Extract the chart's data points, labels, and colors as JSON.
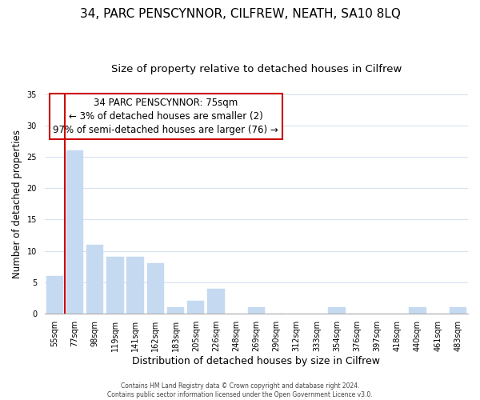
{
  "title": "34, PARC PENSCYNNOR, CILFREW, NEATH, SA10 8LQ",
  "subtitle": "Size of property relative to detached houses in Cilfrew",
  "xlabel": "Distribution of detached houses by size in Cilfrew",
  "ylabel": "Number of detached properties",
  "bar_labels": [
    "55sqm",
    "77sqm",
    "98sqm",
    "119sqm",
    "141sqm",
    "162sqm",
    "183sqm",
    "205sqm",
    "226sqm",
    "248sqm",
    "269sqm",
    "290sqm",
    "312sqm",
    "333sqm",
    "354sqm",
    "376sqm",
    "397sqm",
    "418sqm",
    "440sqm",
    "461sqm",
    "483sqm"
  ],
  "bar_values": [
    6,
    26,
    11,
    9,
    9,
    8,
    1,
    2,
    4,
    0,
    1,
    0,
    0,
    0,
    1,
    0,
    0,
    0,
    1,
    0,
    1
  ],
  "bar_color": "#c5d9f1",
  "subject_label": "34 PARC PENSCYNNOR: 75sqm",
  "annotation_line1": "← 3% of detached houses are smaller (2)",
  "annotation_line2": "97% of semi-detached houses are larger (76) →",
  "annotation_box_color": "#ffffff",
  "annotation_box_edge": "#cc0000",
  "red_line_color": "#cc0000",
  "ylim": [
    0,
    35
  ],
  "footer1": "Contains HM Land Registry data © Crown copyright and database right 2024.",
  "footer2": "Contains public sector information licensed under the Open Government Licence v3.0.",
  "title_fontsize": 11,
  "subtitle_fontsize": 9.5,
  "tick_fontsize": 7,
  "ylabel_fontsize": 8.5,
  "xlabel_fontsize": 9,
  "annotation_fontsize": 8.5,
  "footer_fontsize": 5.5,
  "grid_color": "#d0e0f0",
  "background_color": "#ffffff"
}
